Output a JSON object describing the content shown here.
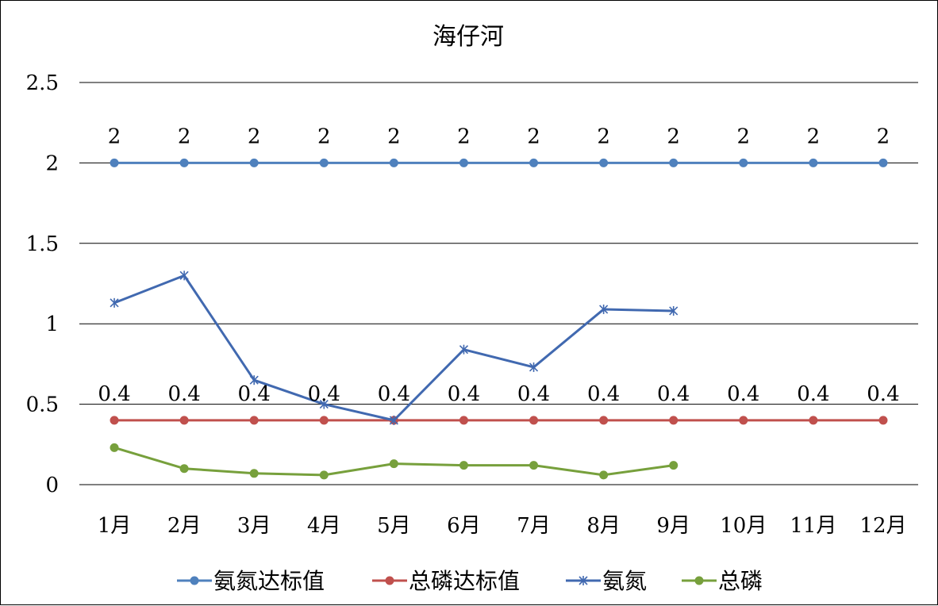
{
  "chart_data": {
    "type": "line",
    "title": "海仔河",
    "categories": [
      "1月",
      "2月",
      "3月",
      "4月",
      "5月",
      "6月",
      "7月",
      "8月",
      "9月",
      "10月",
      "11月",
      "12月"
    ],
    "ylim": [
      0,
      2.5
    ],
    "yticks": [
      0,
      0.5,
      1,
      1.5,
      2,
      2.5
    ],
    "ytick_labels": [
      "0",
      "0.5",
      "1",
      "1.5",
      "2",
      "2.5"
    ],
    "grid": true,
    "legend_position": "bottom",
    "series": [
      {
        "name": "氨氮达标值",
        "values": [
          2,
          2,
          2,
          2,
          2,
          2,
          2,
          2,
          2,
          2,
          2,
          2
        ],
        "data_labels": [
          "2",
          "2",
          "2",
          "2",
          "2",
          "2",
          "2",
          "2",
          "2",
          "2",
          "2",
          "2"
        ],
        "color": "#4f81bd",
        "marker": "circle"
      },
      {
        "name": "总磷达标值",
        "values": [
          0.4,
          0.4,
          0.4,
          0.4,
          0.4,
          0.4,
          0.4,
          0.4,
          0.4,
          0.4,
          0.4,
          0.4
        ],
        "data_labels": [
          "0.4",
          "0.4",
          "0.4",
          "0.4",
          "0.4",
          "0.4",
          "0.4",
          "0.4",
          "0.4",
          "0.4",
          "0.4",
          "0.4"
        ],
        "color": "#c0504d",
        "marker": "circle"
      },
      {
        "name": "氨氮",
        "values": [
          1.13,
          1.3,
          0.65,
          0.5,
          0.4,
          0.84,
          0.73,
          1.09,
          1.08,
          null,
          null,
          null
        ],
        "color": "#4169b0",
        "marker": "star"
      },
      {
        "name": "总磷",
        "values": [
          0.23,
          0.1,
          0.07,
          0.06,
          0.13,
          0.12,
          0.12,
          0.06,
          0.12,
          null,
          null,
          null
        ],
        "color": "#77a03c",
        "marker": "circle"
      }
    ]
  }
}
